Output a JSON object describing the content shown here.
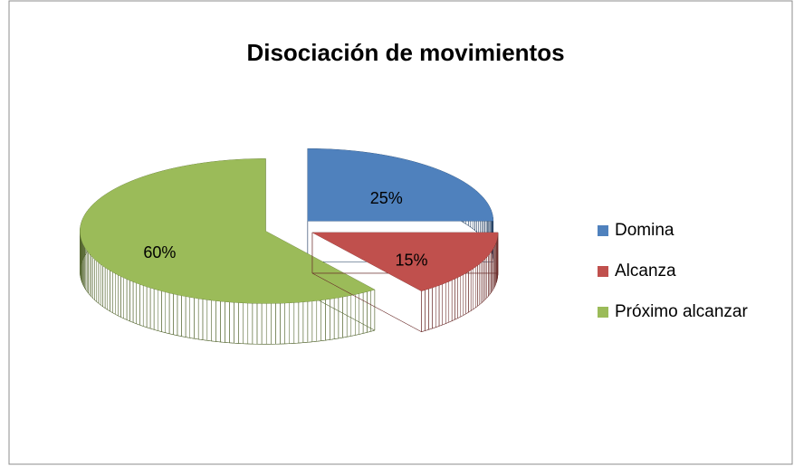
{
  "chart_data": {
    "type": "pie",
    "title": "Disociación de movimientos",
    "categories": [
      "Domina",
      "Alcanza",
      "Próximo alcanzar"
    ],
    "values": [
      25,
      15,
      60
    ],
    "value_labels": [
      "25%",
      "15%",
      "60%"
    ],
    "colors": [
      "#4f81bd",
      "#c0504d",
      "#9bbb59"
    ],
    "legend": "right"
  }
}
